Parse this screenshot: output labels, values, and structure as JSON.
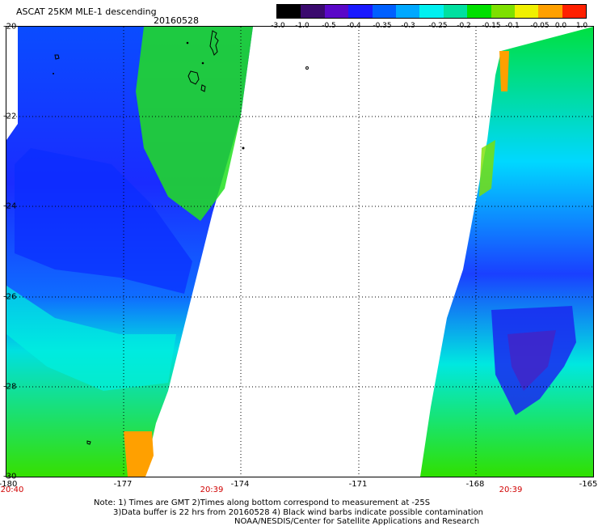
{
  "title": "ASCAT 25KM MLE-1 descending",
  "date": "20160528",
  "colorbar": {
    "labels": [
      "-3.0",
      "-1.0",
      "-0.5",
      "-0.4",
      "-0.35",
      "-0.3",
      "-0.25",
      "-0.2",
      "-0.15",
      "-0.1",
      "-0.05",
      "0.0",
      "1.0"
    ],
    "colors": [
      "#000000",
      "#3a0a6e",
      "#5a08c8",
      "#1a1aff",
      "#0060ff",
      "#00a8ff",
      "#00f0f0",
      "#00e0a0",
      "#00e000",
      "#7ee000",
      "#f0f000",
      "#ffa000",
      "#ff2000"
    ]
  },
  "lat_labels": [
    "-20",
    "-22",
    "-24",
    "-26",
    "-28",
    "-30"
  ],
  "lon_labels": [
    "-180",
    "-177",
    "-174",
    "-171",
    "-168",
    "-165"
  ],
  "times": {
    "left": "20:40",
    "mid": "20:39",
    "right": "20:39"
  },
  "notes": [
    "Note: 1) Times are GMT 2)Times along bottom correspond to measurement at -25S",
    "3)Data buffer is 22 hrs from 20160528 4) Black wind barbs indicate possible contamination",
    "NOAA/NESDIS/Center for Satellite Applications and Research"
  ]
}
